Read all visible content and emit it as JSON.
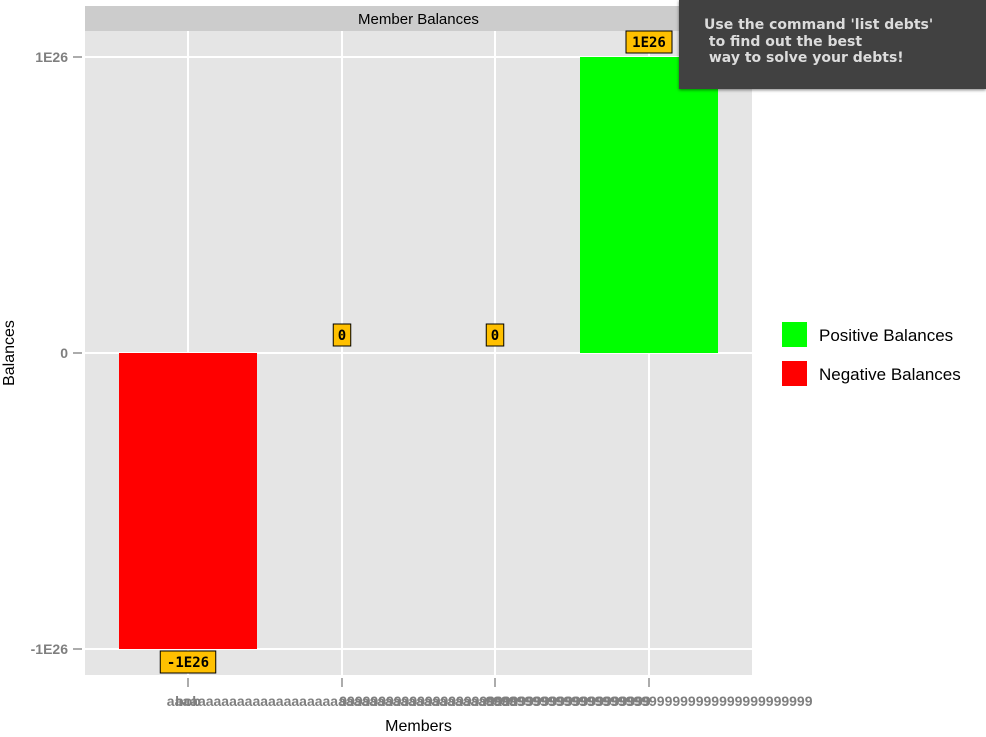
{
  "chart_data": {
    "type": "bar",
    "title": "Member Balances",
    "xlabel": "Members",
    "ylabel": "Balances",
    "categories": [
      "bob",
      "aaaaaaaaaaaaaaaaaaaaaaaaaaaaaaaaaaaaaaaaaaaaa",
      "9999999999999999999999999999999999999999",
      "999999999999999999999999999999999999999999"
    ],
    "values": [
      -1e+26,
      0,
      0,
      1e+26
    ],
    "value_labels": [
      "-1E26",
      "0",
      "0",
      "1E26"
    ],
    "y_ticks": [
      {
        "value": 1e+26,
        "label": "1E26"
      },
      {
        "value": 0,
        "label": "0"
      },
      {
        "value": -1e+26,
        "label": "-1E26"
      }
    ],
    "ylim": [
      -1.08e+26,
      1.18e+26
    ],
    "grid": true,
    "legend_position": "right",
    "legend": [
      {
        "name": "Positive Balances",
        "color": "#00ff00"
      },
      {
        "name": "Negative Balances",
        "color": "#ff0000"
      }
    ],
    "colors": {
      "positive": "#00ff00",
      "negative": "#ff0000",
      "panel": "#e5e5e5",
      "strip": "#cccccc",
      "label_fill": "#ffc000"
    }
  },
  "tooltip": {
    "lines": [
      "Use the command 'list debts'",
      " to find out the best",
      " way to solve your debts!"
    ]
  }
}
